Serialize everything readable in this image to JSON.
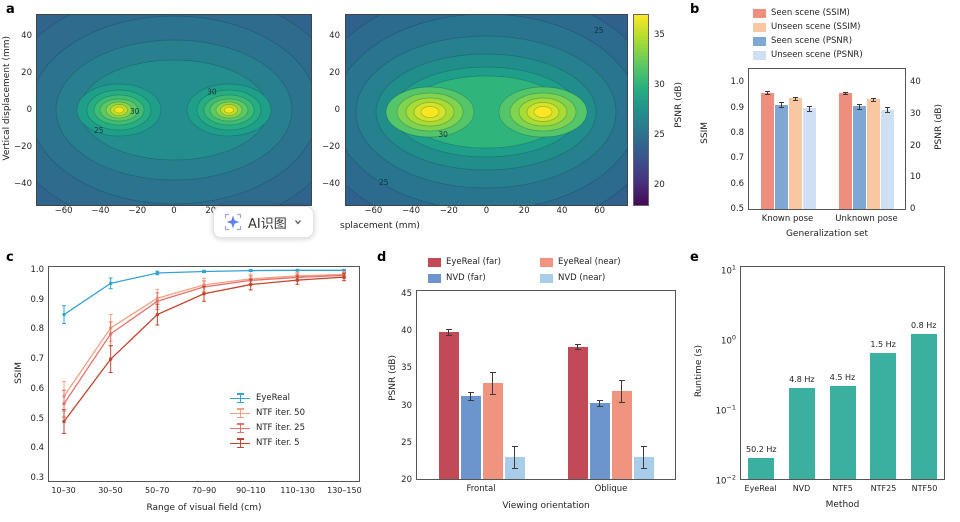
{
  "overlay_button": {
    "label": "AI识图"
  },
  "panel_a": {
    "letter": "a",
    "ylabel": "Vertical displacement (mm)",
    "xlabel_partial": "splacement (mm)",
    "left_plot": {
      "yticks": [
        "40",
        "20",
        "0",
        "−20",
        "−40"
      ],
      "xticks": [
        "−60",
        "−40",
        "−20",
        "0",
        "20",
        "40",
        "60"
      ],
      "contour_labels": [
        {
          "text": "25",
          "fx": 0.21,
          "fy": 0.62
        },
        {
          "text": "30",
          "fx": 0.34,
          "fy": 0.52
        },
        {
          "text": "30",
          "fx": 0.62,
          "fy": 0.42
        }
      ]
    },
    "right_plot": {
      "yticks": [
        "40",
        "20",
        "0",
        "−20",
        "−40"
      ],
      "xticks": [
        "−60",
        "−40",
        "−20",
        "0",
        "20",
        "40",
        "60"
      ],
      "contour_labels": [
        {
          "text": "25",
          "fx": 0.88,
          "fy": 0.1
        },
        {
          "text": "30",
          "fx": 0.33,
          "fy": 0.64
        },
        {
          "text": "25",
          "fx": 0.12,
          "fy": 0.89
        }
      ]
    },
    "colorbar": {
      "label": "PSNR (dB)",
      "ticks": [
        "35",
        "30",
        "25",
        "20"
      ],
      "gradient": [
        "#fde725 0%",
        "#aadc32 13%",
        "#5ec962 26%",
        "#2ab07f 38%",
        "#21918c 50%",
        "#2c728e 63%",
        "#3b528b 76%",
        "#46327e 88%",
        "#440a54 100%"
      ]
    }
  },
  "panel_b": {
    "letter": "b",
    "legend": [
      {
        "label": "Seen scene (SSIM)",
        "color": "#ef8e7d"
      },
      {
        "label": "Unseen scene (SSIM)",
        "color": "#f9c8a2"
      },
      {
        "label": "Seen scene (PSNR)",
        "color": "#7fa7d4"
      },
      {
        "label": "Unseen scene (PSNR)",
        "color": "#cfe0f4"
      }
    ],
    "ylabel_left": "SSIM",
    "ylabel_right": "PSNR (dB)",
    "yticks_left": [
      "1.0",
      "0.9",
      "0.8",
      "0.7",
      "0.6",
      "0.5"
    ],
    "yticks_right": [
      "40",
      "30",
      "20",
      "10",
      "0"
    ],
    "xlabel": "Generalization set"
  },
  "panel_c": {
    "letter": "c",
    "ylabel": "SSIM",
    "xlabel": "Range of visual field (cm)",
    "yticks": [
      "1.0",
      "0.9",
      "0.8",
      "0.7",
      "0.6",
      "0.5",
      "0.4",
      "0.3"
    ]
  },
  "panel_d": {
    "letter": "d",
    "ylabel": "PSNR (dB)",
    "xlabel": "Viewing orientation",
    "yticks": [
      "45",
      "40",
      "35",
      "30",
      "25",
      "20"
    ],
    "legend": [
      {
        "label": "EyeReal (far)",
        "color": "#c24a57"
      },
      {
        "label": "NVD (far)",
        "color": "#6b95cc"
      },
      {
        "label": "EyeReal (near)",
        "color": "#f0937f"
      },
      {
        "label": "NVD (near)",
        "color": "#a9cde8"
      }
    ]
  },
  "panel_e": {
    "letter": "e",
    "ylabel": "Runtime (s)",
    "xlabel": "Method",
    "ytick_exponents": [
      "1",
      "0",
      "−1",
      "−2"
    ]
  },
  "chart_data": [
    {
      "id": "a_left",
      "type": "heatmap",
      "colormap": "viridis",
      "ylabel": "Vertical displacement (mm)",
      "xlabel_visible": "",
      "xticks": [
        -60,
        -40,
        -20,
        0,
        20,
        40,
        60
      ],
      "yticks": [
        40,
        20,
        0,
        -20,
        -40
      ],
      "peaks": [
        {
          "x": -30,
          "y": 0,
          "psnr": 33
        },
        {
          "x": 30,
          "y": 0,
          "psnr": 33
        }
      ],
      "labeled_levels": [
        25,
        30
      ]
    },
    {
      "id": "a_right",
      "type": "heatmap",
      "colormap": "viridis",
      "xlabel_visible": "splacement (mm)",
      "xticks": [
        -60,
        -40,
        -20,
        0,
        20,
        40,
        60
      ],
      "yticks": [
        40,
        20,
        0,
        -20,
        -40
      ],
      "peaks": [
        {
          "x": -30,
          "y": 0,
          "psnr": 35
        },
        {
          "x": 30,
          "y": 0,
          "psnr": 35
        }
      ],
      "labeled_levels": [
        25,
        30
      ],
      "colorbar": {
        "label": "PSNR (dB)",
        "range": [
          18,
          37
        ],
        "ticks": [
          20,
          25,
          30,
          35
        ]
      }
    },
    {
      "id": "b",
      "type": "bar",
      "categories": [
        "Known pose",
        "Unknown pose"
      ],
      "series": [
        {
          "name": "Seen scene (SSIM)",
          "axis": "ssim",
          "color": "#ef8e7d",
          "values": [
            0.962,
            0.96
          ],
          "errors": [
            0.005,
            0.005
          ]
        },
        {
          "name": "Seen scene (PSNR)",
          "axis": "psnr",
          "color": "#7fa7d4",
          "values": [
            33.0,
            32.5
          ],
          "errors": [
            0.8,
            0.8
          ]
        },
        {
          "name": "Unseen scene (SSIM)",
          "axis": "ssim",
          "color": "#f9c8a2",
          "values": [
            0.94,
            0.935
          ],
          "errors": [
            0.006,
            0.007
          ]
        },
        {
          "name": "Unseen scene (PSNR)",
          "axis": "psnr",
          "color": "#cfe0f4",
          "values": [
            32.0,
            31.5
          ],
          "errors": [
            0.8,
            0.9
          ]
        }
      ],
      "xlabel": "Generalization set",
      "ylim_ssim": [
        0.5,
        1.0
      ],
      "ylim_psnr": [
        0,
        40
      ]
    },
    {
      "id": "c",
      "type": "line",
      "categories": [
        "10–30",
        "30–50",
        "50–70",
        "70–90",
        "90–110",
        "110–130",
        "130–150"
      ],
      "series": [
        {
          "name": "EyeReal",
          "color": "#35a2d4",
          "values": [
            0.85,
            0.955,
            0.99,
            0.995,
            0.998,
            0.999,
            0.999
          ],
          "errors": [
            0.03,
            0.018,
            0.006,
            0.004,
            0.003,
            0.002,
            0.002
          ]
        },
        {
          "name": "NTF iter. 50",
          "color": "#f2a182",
          "values": [
            0.575,
            0.805,
            0.905,
            0.95,
            0.97,
            0.98,
            0.985
          ],
          "errors": [
            0.05,
            0.045,
            0.03,
            0.022,
            0.016,
            0.012,
            0.01
          ]
        },
        {
          "name": "NTF iter. 25",
          "color": "#e4736e",
          "values": [
            0.55,
            0.785,
            0.895,
            0.943,
            0.965,
            0.975,
            0.982
          ],
          "errors": [
            0.045,
            0.04,
            0.028,
            0.02,
            0.015,
            0.012,
            0.01
          ]
        },
        {
          "name": "NTF iter. 5",
          "color": "#c2452e",
          "values": [
            0.49,
            0.7,
            0.85,
            0.92,
            0.951,
            0.966,
            0.976
          ],
          "errors": [
            0.04,
            0.045,
            0.035,
            0.025,
            0.018,
            0.014,
            0.012
          ]
        }
      ],
      "ylabel": "SSIM",
      "xlabel": "Range of visual field (cm)",
      "ylim": [
        0.3,
        1.0
      ]
    },
    {
      "id": "d",
      "type": "bar",
      "categories": [
        "Frontal",
        "Oblique"
      ],
      "series": [
        {
          "name": "EyeReal (far)",
          "color": "#c24a57",
          "values": [
            40.0,
            38.0
          ],
          "errors": [
            0.4,
            0.3
          ]
        },
        {
          "name": "NVD (far)",
          "color": "#6b95cc",
          "values": [
            31.3,
            30.3
          ],
          "errors": [
            0.5,
            0.4
          ]
        },
        {
          "name": "EyeReal (near)",
          "color": "#f0937f",
          "values": [
            33.0,
            32.0
          ],
          "errors": [
            1.5,
            1.5
          ]
        },
        {
          "name": "NVD (near)",
          "color": "#a9cde8",
          "values": [
            23.0,
            23.0
          ],
          "errors": [
            1.5,
            1.5
          ]
        }
      ],
      "ylabel": "PSNR (dB)",
      "xlabel": "Viewing orientation",
      "ylim": [
        20,
        45
      ]
    },
    {
      "id": "e",
      "type": "bar",
      "yscale": "log",
      "categories": [
        "EyeReal",
        "NVD",
        "NTF5",
        "NTF25",
        "NTF50"
      ],
      "values": [
        0.0199,
        0.208,
        0.222,
        0.667,
        1.25
      ],
      "bar_labels": [
        "50.2 Hz",
        "4.8 Hz",
        "4.5 Hz",
        "1.5 Hz",
        "0.8 Hz"
      ],
      "color": "#3cb0a0",
      "ylabel": "Runtime (s)",
      "xlabel": "Method",
      "ylim": [
        0.01,
        10
      ]
    }
  ]
}
